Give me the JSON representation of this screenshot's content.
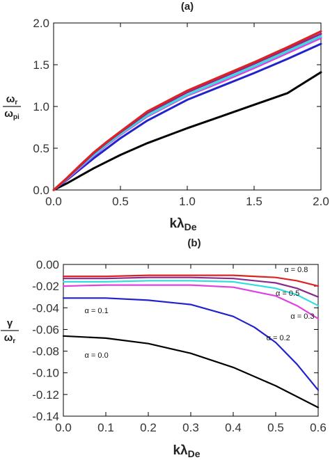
{
  "figure": {
    "panel_a_label": "(a)",
    "panel_b_label": "(b)"
  },
  "chart_data": [
    {
      "type": "line",
      "title": "(a)",
      "xlabel": {
        "main": "kλ",
        "sub": "De"
      },
      "ylabel": {
        "num_main": "ω",
        "num_sub": "r",
        "den_main": "ω",
        "den_sub": "pi"
      },
      "xlim": [
        0,
        2
      ],
      "ylim": [
        0,
        2
      ],
      "xticks": [
        0,
        0.5,
        1,
        1.5,
        2
      ],
      "xtick_labels": [
        "0.0",
        "0.5",
        "1.0",
        "1.5",
        "2.0"
      ],
      "yticks": [
        0,
        0.5,
        1,
        1.5,
        2
      ],
      "ytick_labels": [
        "0.0",
        "0.5",
        "1.0",
        "1.5",
        "2.0"
      ],
      "grid": false,
      "series": [
        {
          "color": "#000000",
          "x": [
            0,
            0.1,
            0.2,
            0.3,
            0.4,
            0.5,
            0.7,
            1.0,
            1.25,
            1.5,
            1.75,
            2.0
          ],
          "y": [
            0,
            0.08,
            0.17,
            0.26,
            0.34,
            0.42,
            0.56,
            0.74,
            0.88,
            1.02,
            1.16,
            1.41
          ]
        },
        {
          "color": "#2222cc",
          "x": [
            0,
            0.1,
            0.2,
            0.3,
            0.4,
            0.5,
            0.7,
            1.0,
            1.25,
            1.5,
            1.75,
            2.0
          ],
          "y": [
            0,
            0.12,
            0.25,
            0.38,
            0.5,
            0.62,
            0.83,
            1.08,
            1.24,
            1.4,
            1.57,
            1.75
          ]
        },
        {
          "color": "#e040e0",
          "x": [
            0,
            0.1,
            0.2,
            0.3,
            0.4,
            0.5,
            0.7,
            1.0,
            1.25,
            1.5,
            1.75,
            2.0
          ],
          "y": [
            0,
            0.13,
            0.27,
            0.41,
            0.54,
            0.66,
            0.88,
            1.13,
            1.29,
            1.46,
            1.64,
            1.82
          ]
        },
        {
          "color": "#33dddd",
          "x": [
            0,
            0.1,
            0.2,
            0.3,
            0.4,
            0.5,
            0.7,
            1.0,
            1.25,
            1.5,
            1.75,
            2.0
          ],
          "y": [
            0,
            0.135,
            0.28,
            0.42,
            0.55,
            0.67,
            0.89,
            1.14,
            1.31,
            1.48,
            1.66,
            1.84
          ]
        },
        {
          "color": "#8a2a8a",
          "x": [
            0,
            0.1,
            0.2,
            0.3,
            0.4,
            0.5,
            0.7,
            1.0,
            1.25,
            1.5,
            1.75,
            2.0
          ],
          "y": [
            0,
            0.14,
            0.29,
            0.44,
            0.57,
            0.69,
            0.92,
            1.17,
            1.34,
            1.51,
            1.69,
            1.87
          ]
        },
        {
          "color": "#dd2222",
          "x": [
            0,
            0.1,
            0.2,
            0.3,
            0.4,
            0.5,
            0.7,
            1.0,
            1.25,
            1.5,
            1.75,
            2.0
          ],
          "y": [
            0,
            0.145,
            0.3,
            0.45,
            0.58,
            0.7,
            0.94,
            1.19,
            1.36,
            1.53,
            1.71,
            1.9
          ]
        }
      ]
    },
    {
      "type": "line",
      "title": "(b)",
      "xlabel": {
        "main": "kλ",
        "sub": "De"
      },
      "ylabel": {
        "num_main": "γ",
        "num_sub": "",
        "den_main": "ω",
        "den_sub": "r"
      },
      "xlim": [
        0,
        0.6
      ],
      "ylim": [
        -0.14,
        0
      ],
      "xticks": [
        0,
        0.1,
        0.2,
        0.3,
        0.4,
        0.5,
        0.6
      ],
      "xtick_labels": [
        "0.0",
        "0.1",
        "0.2",
        "0.3",
        "0.4",
        "0.5",
        "0.6"
      ],
      "yticks": [
        0,
        -0.02,
        -0.04,
        -0.06,
        -0.08,
        -0.1,
        -0.12,
        -0.14
      ],
      "ytick_labels": [
        "0.00",
        "-0.02",
        "-0.04",
        "-0.06",
        "-0.08",
        "-0.10",
        "-0.12",
        "-0.14"
      ],
      "grid": false,
      "series": [
        {
          "color": "#000000",
          "x": [
            0,
            0.1,
            0.2,
            0.3,
            0.4,
            0.5,
            0.6
          ],
          "y": [
            -0.066,
            -0.068,
            -0.073,
            -0.082,
            -0.095,
            -0.112,
            -0.132
          ]
        },
        {
          "color": "#2222cc",
          "x": [
            0,
            0.1,
            0.2,
            0.3,
            0.4,
            0.45,
            0.5,
            0.55,
            0.6
          ],
          "y": [
            -0.031,
            -0.031,
            -0.033,
            -0.037,
            -0.048,
            -0.058,
            -0.072,
            -0.092,
            -0.116
          ]
        },
        {
          "color": "#e040e0",
          "x": [
            0,
            0.1,
            0.2,
            0.3,
            0.4,
            0.5,
            0.55,
            0.6
          ],
          "y": [
            -0.02,
            -0.019,
            -0.019,
            -0.019,
            -0.021,
            -0.029,
            -0.038,
            -0.05
          ]
        },
        {
          "color": "#33dddd",
          "x": [
            0,
            0.1,
            0.2,
            0.3,
            0.4,
            0.5,
            0.55,
            0.6
          ],
          "y": [
            -0.016,
            -0.016,
            -0.015,
            -0.015,
            -0.016,
            -0.022,
            -0.028,
            -0.038
          ]
        },
        {
          "color": "#8a2a8a",
          "x": [
            0,
            0.1,
            0.2,
            0.3,
            0.4,
            0.5,
            0.55,
            0.6
          ],
          "y": [
            -0.013,
            -0.013,
            -0.012,
            -0.012,
            -0.013,
            -0.017,
            -0.022,
            -0.03
          ]
        },
        {
          "color": "#dd2222",
          "x": [
            0,
            0.1,
            0.2,
            0.3,
            0.4,
            0.5,
            0.55,
            0.6
          ],
          "y": [
            -0.011,
            -0.011,
            -0.01,
            -0.01,
            -0.01,
            -0.012,
            -0.015,
            -0.02
          ]
        }
      ],
      "annotations": [
        {
          "text": "α = 0.8",
          "x": 0.52,
          "y": -0.007
        },
        {
          "text": "α = 0.5",
          "x": 0.5,
          "y": -0.029
        },
        {
          "text": "α = 0.3",
          "x": 0.535,
          "y": -0.05
        },
        {
          "text": "α = 0.2",
          "x": 0.478,
          "y": -0.07
        },
        {
          "text": "α = 0.1",
          "x": 0.05,
          "y": -0.045
        },
        {
          "text": "α = 0.0",
          "x": 0.05,
          "y": -0.086
        }
      ]
    }
  ]
}
